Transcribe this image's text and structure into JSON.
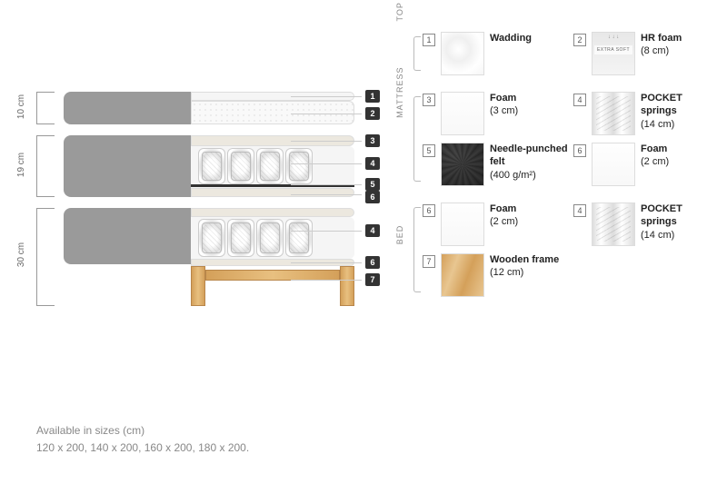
{
  "dimensions": {
    "top": "10 cm",
    "middle": "19 cm",
    "bottom": "30 cm"
  },
  "callouts": [
    "1",
    "2",
    "3",
    "4",
    "5",
    "6",
    "4",
    "6",
    "7"
  ],
  "sizes": {
    "heading": "Available in sizes (cm)",
    "list": "120 x 200, 140 x 200, 160 x 200, 180 x 200."
  },
  "sections": [
    {
      "label": "TOP MATTRESS",
      "items": [
        {
          "num": "1",
          "title": "Wadding",
          "sub": "",
          "thumb": "thumb-wadding"
        },
        {
          "num": "2",
          "title": "HR foam",
          "sub": "(8 cm)",
          "thumb": "thumb-hrfoam"
        }
      ]
    },
    {
      "label": "MATTRESS",
      "items": [
        {
          "num": "3",
          "title": "Foam",
          "sub": "(3 cm)",
          "thumb": "thumb-foam"
        },
        {
          "num": "4",
          "title": "POCKET springs",
          "sub": "(14 cm)",
          "thumb": "thumb-pocket"
        },
        {
          "num": "5",
          "title": "Needle-punched felt",
          "sub": "(400 g/m²)",
          "thumb": "thumb-felt"
        },
        {
          "num": "6",
          "title": "Foam",
          "sub": "(2 cm)",
          "thumb": "thumb-foam"
        }
      ]
    },
    {
      "label": "BED",
      "items": [
        {
          "num": "6",
          "title": "Foam",
          "sub": "(2 cm)",
          "thumb": "thumb-foam"
        },
        {
          "num": "4",
          "title": "POCKET springs",
          "sub": "(14 cm)",
          "thumb": "thumb-pocket"
        },
        {
          "num": "7",
          "title": "Wooden frame",
          "sub": "(12 cm)",
          "thumb": "thumb-wood"
        }
      ]
    }
  ],
  "colors": {
    "grey_fabric": "#9a9a9a",
    "light_foam": "#f5f5f5",
    "foam_beige": "#ece8df",
    "wood": "#d4a05a",
    "callout_bg": "#333333"
  }
}
